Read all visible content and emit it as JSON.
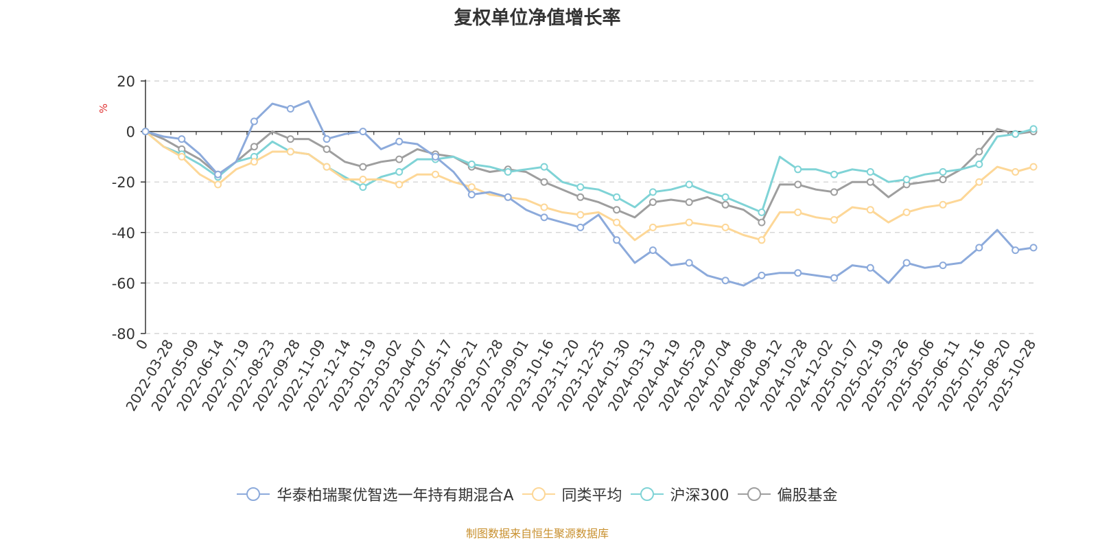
{
  "chart_data": {
    "type": "line",
    "title": "复权单位净值增长率",
    "ylabel": "%",
    "ylim": [
      -80,
      20
    ],
    "y_ticks": [
      20,
      0,
      -20,
      -40,
      -60,
      -80
    ],
    "x_tick_labels": [
      "0",
      "2022-03-28",
      "2022-05-09",
      "2022-06-14",
      "2022-07-19",
      "2022-08-23",
      "2022-09-28",
      "2022-11-09",
      "2022-12-14",
      "2023-01-19",
      "2023-03-02",
      "2023-04-07",
      "2023-05-17",
      "2023-06-21",
      "2023-07-28",
      "2023-09-01",
      "2023-10-16",
      "2023-11-20",
      "2023-12-25",
      "2024-01-30",
      "2024-03-13",
      "2024-04-19",
      "2024-05-29",
      "2024-07-04",
      "2024-08-08",
      "2024-09-12",
      "2024-10-28",
      "2024-12-02",
      "2025-01-07",
      "2025-02-19",
      "2025-03-26",
      "2025-05-06",
      "2025-06-11",
      "2025-07-16",
      "2025-08-20",
      "2025-10-28"
    ],
    "grid": true,
    "legend_position": "bottom",
    "series": [
      {
        "name": "华泰柏瑞聚优智选一年持有期混合A",
        "color": "#8caadb",
        "values": [
          0,
          -2,
          -3,
          -9,
          -17,
          -12,
          4,
          11,
          9,
          12,
          -3,
          -1,
          0,
          -7,
          -4,
          -5,
          -10,
          -16,
          -25,
          -24,
          -26,
          -31,
          -34,
          -36,
          -38,
          -33,
          -43,
          -52,
          -47,
          -53,
          -52,
          -57,
          -59,
          -61,
          -57,
          -56,
          -56,
          -57,
          -58,
          -53,
          -54,
          -60,
          -52,
          -54,
          -53,
          -52,
          -46,
          -39,
          -47,
          -46
        ]
      },
      {
        "name": "同类平均",
        "color": "#fdd797",
        "values": [
          0,
          -6,
          -10,
          -17,
          -21,
          -15,
          -12,
          -8,
          -8,
          -9,
          -14,
          -19,
          -19,
          -19,
          -21,
          -17,
          -17,
          -20,
          -22,
          -25,
          -26,
          -27,
          -30,
          -32,
          -33,
          -32,
          -36,
          -43,
          -38,
          -37,
          -36,
          -37,
          -38,
          -41,
          -43,
          -32,
          -32,
          -34,
          -35,
          -30,
          -31,
          -36,
          -32,
          -30,
          -29,
          -27,
          -20,
          -14,
          -16,
          -14
        ]
      },
      {
        "name": "沪深300",
        "color": "#7fd3d6",
        "values": [
          0,
          -6,
          -9,
          -13,
          -18,
          -12,
          -10,
          -4,
          -8,
          -9,
          -14,
          -18,
          -22,
          -18,
          -16,
          -11,
          -11,
          -10,
          -13,
          -14,
          -16,
          -15,
          -14,
          -20,
          -22,
          -23,
          -26,
          -30,
          -24,
          -23,
          -21,
          -24,
          -26,
          -29,
          -32,
          -10,
          -15,
          -15,
          -17,
          -15,
          -16,
          -20,
          -19,
          -17,
          -16,
          -15,
          -13,
          -2,
          -1,
          1
        ]
      },
      {
        "name": "偏股基金",
        "color": "#9e9e9e",
        "values": [
          0,
          -3,
          -7,
          -11,
          -17,
          -12,
          -6,
          0,
          -3,
          -3,
          -7,
          -12,
          -14,
          -12,
          -11,
          -7,
          -9,
          -10,
          -14,
          -16,
          -15,
          -16,
          -20,
          -23,
          -26,
          -28,
          -31,
          -34,
          -28,
          -27,
          -28,
          -26,
          -29,
          -31,
          -36,
          -21,
          -21,
          -23,
          -24,
          -20,
          -20,
          -26,
          -21,
          -20,
          -19,
          -15,
          -8,
          1,
          -1,
          0
        ]
      }
    ]
  },
  "source_note": "制图数据来自恒生聚源数据库"
}
